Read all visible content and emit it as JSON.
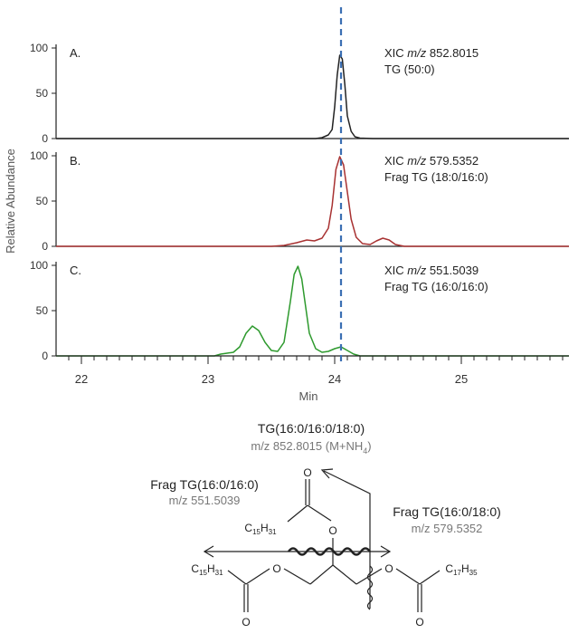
{
  "chart_data": {
    "type": "line",
    "xlabel": "Min",
    "ylabel": "Relative Abundance",
    "xlim": [
      21.8,
      25.85
    ],
    "x_ticks": [
      22,
      23,
      24,
      25
    ],
    "grid": false,
    "reference_line": {
      "x": 24.05,
      "color": "#3b6fb3",
      "style": "dashed"
    },
    "panels": [
      {
        "label": "A.",
        "xic_prefix": "XIC",
        "mz_label": "m/z",
        "mz_value": "852.8015",
        "compound": "TG (50:0)",
        "color": "#222222",
        "y_ticks": [
          0,
          50,
          100
        ],
        "ylim": [
          0,
          100
        ],
        "points": [
          [
            21.8,
            0
          ],
          [
            23.85,
            0
          ],
          [
            23.9,
            1
          ],
          [
            23.95,
            4
          ],
          [
            23.98,
            10
          ],
          [
            24.0,
            35
          ],
          [
            24.02,
            70
          ],
          [
            24.04,
            92
          ],
          [
            24.06,
            88
          ],
          [
            24.08,
            60
          ],
          [
            24.1,
            25
          ],
          [
            24.13,
            8
          ],
          [
            24.16,
            2
          ],
          [
            24.2,
            0.5
          ],
          [
            24.3,
            0
          ],
          [
            25.85,
            0
          ]
        ]
      },
      {
        "label": "B.",
        "xic_prefix": "XIC",
        "mz_label": "m/z",
        "mz_value": "579.5352",
        "compound": "Frag TG (18:0/16:0)",
        "color": "#a83232",
        "y_ticks": [
          0,
          50,
          100
        ],
        "ylim": [
          0,
          100
        ],
        "points": [
          [
            21.8,
            0
          ],
          [
            23.5,
            0
          ],
          [
            23.6,
            1
          ],
          [
            23.7,
            4
          ],
          [
            23.78,
            7
          ],
          [
            23.84,
            6
          ],
          [
            23.9,
            9
          ],
          [
            23.95,
            20
          ],
          [
            23.98,
            45
          ],
          [
            24.01,
            85
          ],
          [
            24.04,
            99
          ],
          [
            24.07,
            90
          ],
          [
            24.1,
            60
          ],
          [
            24.13,
            30
          ],
          [
            24.17,
            10
          ],
          [
            24.22,
            3
          ],
          [
            24.28,
            2
          ],
          [
            24.33,
            6
          ],
          [
            24.38,
            9
          ],
          [
            24.43,
            7
          ],
          [
            24.48,
            2
          ],
          [
            24.55,
            0
          ],
          [
            25.85,
            0
          ]
        ]
      },
      {
        "label": "C.",
        "xic_prefix": "XIC",
        "mz_label": "m/z",
        "mz_value": "551.5039",
        "compound": "Frag TG (16:0/16:0)",
        "color": "#2e9a2e",
        "y_ticks": [
          0,
          50,
          100
        ],
        "ylim": [
          0,
          100
        ],
        "points": [
          [
            21.8,
            0
          ],
          [
            23.05,
            0
          ],
          [
            23.1,
            2
          ],
          [
            23.15,
            3
          ],
          [
            23.2,
            4
          ],
          [
            23.25,
            10
          ],
          [
            23.3,
            25
          ],
          [
            23.35,
            33
          ],
          [
            23.4,
            28
          ],
          [
            23.45,
            15
          ],
          [
            23.5,
            6
          ],
          [
            23.55,
            5
          ],
          [
            23.6,
            15
          ],
          [
            23.65,
            60
          ],
          [
            23.68,
            90
          ],
          [
            23.71,
            99
          ],
          [
            23.74,
            85
          ],
          [
            23.77,
            55
          ],
          [
            23.8,
            25
          ],
          [
            23.85,
            8
          ],
          [
            23.9,
            4
          ],
          [
            23.95,
            5
          ],
          [
            24.0,
            8
          ],
          [
            24.05,
            10
          ],
          [
            24.1,
            6
          ],
          [
            24.15,
            2
          ],
          [
            24.2,
            0
          ],
          [
            25.85,
            0
          ]
        ]
      }
    ]
  },
  "structure": {
    "title": "TG(16:0/16:0/18:0)",
    "subtitle_prefix": "m/z 852.8015 (M+NH",
    "subtitle_sub": "4",
    "subtitle_suffix": ")",
    "frag_left_title": "Frag TG(16:0/16:0)",
    "frag_left_mz": "m/z 551.5039",
    "frag_right_title": "Frag TG(16:0/18:0)",
    "frag_right_mz": "m/z 579.5352",
    "atom_o": "O",
    "atom_c": "C",
    "atom_h": "H",
    "chain_top_c": "15",
    "chain_top_h": "31",
    "chain_left_c": "15",
    "chain_left_h": "31",
    "chain_right_c": "17",
    "chain_right_h": "35"
  }
}
